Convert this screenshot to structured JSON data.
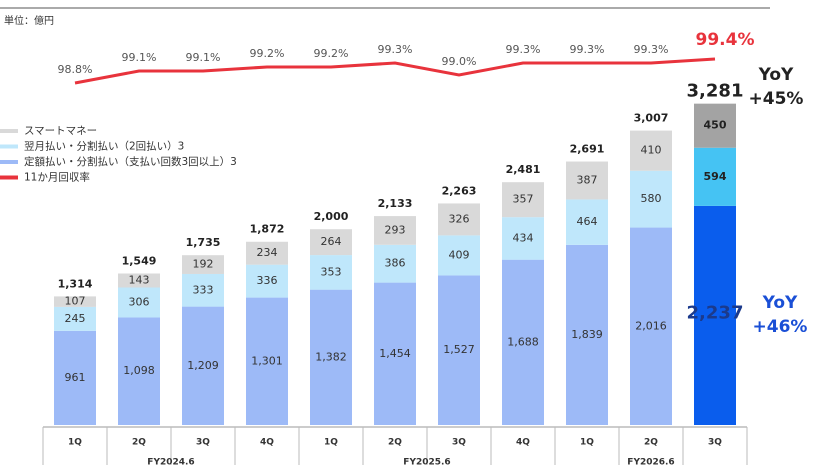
{
  "chart_data": {
    "type": "stacked_bar_line",
    "unit_note": "単位：億円",
    "categories": [
      "1Q",
      "2Q",
      "3Q",
      "4Q",
      "1Q",
      "2Q",
      "3Q",
      "4Q",
      "1Q",
      "2Q",
      "3Q"
    ],
    "groups": [
      {
        "name": "FY2024.6",
        "count": 4
      },
      {
        "name": "FY2025.6",
        "count": 4
      },
      {
        "name": "FY2026.6",
        "count": 3
      }
    ],
    "series": [
      {
        "name": "定額払い・分割払い（支払い回数3回以上）3",
        "color": "#9dbaf7",
        "highlight_color": "#0a5ded",
        "values": [
          961,
          1098,
          1209,
          1301,
          1382,
          1454,
          1527,
          1688,
          1839,
          2016,
          2237
        ],
        "value_labels": [
          "961",
          "1,098",
          "1,209",
          "1,301",
          "1,382",
          "1,454",
          "1,527",
          "1,688",
          "1,839",
          "2,016",
          "2,237"
        ]
      },
      {
        "name": "翌月払い・分割払い（2回払い）3",
        "color": "#bfe7fb",
        "highlight_color": "#45c3f3",
        "values": [
          245,
          306,
          333,
          336,
          353,
          386,
          409,
          434,
          464,
          580,
          594
        ]
      },
      {
        "name": "スマートマネー",
        "color": "#d9d9d9",
        "highlight_color": "#a3a3a3",
        "values": [
          107,
          143,
          192,
          234,
          264,
          293,
          326,
          357,
          387,
          410,
          450
        ]
      },
      {
        "name": "11か月回収率",
        "color": "#e8333c",
        "axis": "y2",
        "values": [
          98.8,
          99.1,
          99.1,
          99.2,
          99.2,
          99.3,
          99.0,
          99.3,
          99.3,
          99.3,
          99.4
        ],
        "value_labels": [
          "98.8%",
          "99.1%",
          "99.1%",
          "99.2%",
          "99.2%",
          "99.3%",
          "99.0%",
          "99.3%",
          "99.3%",
          "99.3%",
          "99.4%"
        ]
      }
    ],
    "totals": {
      "values": [
        1314,
        1549,
        1735,
        1872,
        2000,
        2133,
        2263,
        2481,
        2691,
        3007,
        3281
      ],
      "value_labels": [
        "1,314",
        "1,549",
        "1,735",
        "1,872",
        "2,000",
        "2,133",
        "2,263",
        "2,481",
        "2,691",
        "3,007",
        "3,281"
      ]
    },
    "highlight_index": 10,
    "annotations": [
      {
        "lines": [
          "YoY",
          "+45%"
        ],
        "color": "#222222"
      },
      {
        "lines": [
          "YoY",
          "+46%"
        ],
        "color": "#1a4fd6"
      }
    ],
    "ylim": [
      0,
      3400
    ],
    "y2lim": [
      98.5,
      99.5
    ]
  }
}
